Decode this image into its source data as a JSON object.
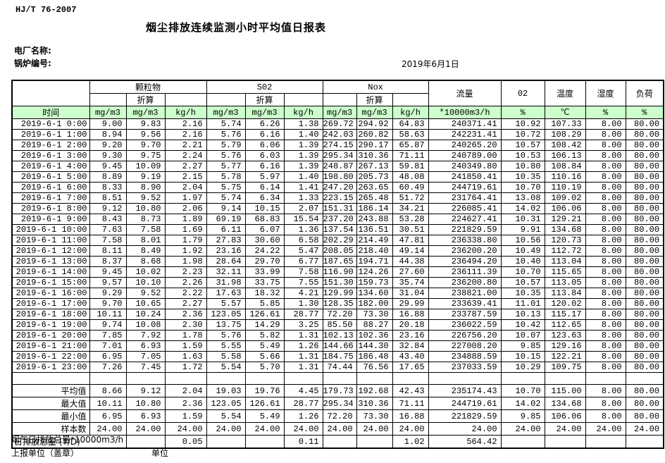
{
  "page": {
    "doc_number": "HJ/T  76-2007",
    "title": "烟尘排放连续监测小时平均值日报表",
    "plant_label": "电厂名称:",
    "boiler_label": "锅炉编号:",
    "date": "2019年6月1日"
  },
  "table": {
    "time_header": "时间",
    "groups": [
      {
        "label": "颗粒物",
        "sub": "折算",
        "units": [
          "mg/m3",
          "mg/m3",
          "kg/h"
        ]
      },
      {
        "label": "S02",
        "sub": "折算",
        "units": [
          "mg/m3",
          "mg/m3",
          "kg/h"
        ]
      },
      {
        "label": "Nox",
        "sub": "折算",
        "units": [
          "mg/m3",
          "mg/m3",
          "kg/h"
        ]
      }
    ],
    "singles": [
      {
        "label": "流量",
        "unit": "*10000m3/h"
      },
      {
        "label": "02",
        "unit": "%"
      },
      {
        "label": "温度",
        "unit": "℃"
      },
      {
        "label": "湿度",
        "unit": "%"
      },
      {
        "label": "负荷",
        "unit": "%"
      }
    ],
    "rows": [
      [
        "2019-6-1 0:00",
        "9.00",
        "9.83",
        "2.16",
        "5.74",
        "6.26",
        "1.38",
        "269.72",
        "294.92",
        "64.83",
        "240371.41",
        "10.92",
        "107.33",
        "8.00",
        "80.00"
      ],
      [
        "2019-6-1 1:00",
        "8.94",
        "9.56",
        "2.16",
        "5.76",
        "6.16",
        "1.40",
        "242.03",
        "260.82",
        "58.63",
        "242231.41",
        "10.72",
        "108.29",
        "8.00",
        "80.00"
      ],
      [
        "2019-6-1 2:00",
        "9.20",
        "9.70",
        "2.21",
        "5.79",
        "6.06",
        "1.39",
        "274.15",
        "290.17",
        "65.87",
        "240265.20",
        "10.57",
        "108.42",
        "8.00",
        "80.00"
      ],
      [
        "2019-6-1 3:00",
        "9.30",
        "9.75",
        "2.24",
        "5.76",
        "6.03",
        "1.39",
        "295.34",
        "310.36",
        "71.11",
        "240789.00",
        "10.53",
        "106.13",
        "8.00",
        "80.00"
      ],
      [
        "2019-6-1 4:00",
        "9.45",
        "10.09",
        "2.27",
        "5.77",
        "6.16",
        "1.39",
        "248.87",
        "267.13",
        "59.81",
        "240349.80",
        "10.80",
        "108.84",
        "8.00",
        "80.00"
      ],
      [
        "2019-6-1 5:00",
        "8.89",
        "9.19",
        "2.15",
        "5.78",
        "5.97",
        "1.40",
        "198.80",
        "205.73",
        "48.08",
        "241850.41",
        "10.35",
        "110.16",
        "8.00",
        "80.00"
      ],
      [
        "2019-6-1 6:00",
        "8.33",
        "8.90",
        "2.04",
        "5.75",
        "6.14",
        "1.41",
        "247.20",
        "263.65",
        "60.49",
        "244719.61",
        "10.70",
        "110.19",
        "8.00",
        "80.00"
      ],
      [
        "2019-6-1 7:00",
        "8.51",
        "9.52",
        "1.97",
        "5.74",
        "6.34",
        "1.33",
        "223.15",
        "265.48",
        "51.72",
        "231764.41",
        "13.08",
        "109.02",
        "8.00",
        "80.00"
      ],
      [
        "2019-6-1 8:00",
        "9.12",
        "10.80",
        "2.06",
        "9.14",
        "10.15",
        "2.07",
        "151.31",
        "186.14",
        "34.21",
        "226085.41",
        "14.02",
        "106.06",
        "8.00",
        "80.00"
      ],
      [
        "2019-6-1 9:00",
        "8.43",
        "8.73",
        "1.89",
        "69.19",
        "68.83",
        "15.54",
        "237.20",
        "243.88",
        "53.28",
        "224627.41",
        "10.31",
        "129.21",
        "8.00",
        "80.00"
      ],
      [
        "2019-6-1 10:00",
        "7.63",
        "7.58",
        "1.69",
        "6.11",
        "6.07",
        "1.36",
        "137.54",
        "136.51",
        "30.51",
        "221829.59",
        "9.91",
        "134.68",
        "8.00",
        "80.00"
      ],
      [
        "2019-6-1 11:00",
        "7.58",
        "8.01",
        "1.79",
        "27.83",
        "30.60",
        "6.58",
        "202.29",
        "214.49",
        "47.81",
        "236338.80",
        "10.56",
        "120.73",
        "8.00",
        "80.00"
      ],
      [
        "2019-6-1 12:00",
        "8.11",
        "8.49",
        "1.92",
        "23.16",
        "24.22",
        "5.47",
        "208.05",
        "218.40",
        "49.14",
        "236200.20",
        "10.49",
        "112.72",
        "8.00",
        "80.00"
      ],
      [
        "2019-6-1 13:00",
        "8.37",
        "8.68",
        "1.98",
        "28.64",
        "29.70",
        "6.77",
        "187.65",
        "194.71",
        "44.38",
        "236494.20",
        "10.40",
        "113.04",
        "8.00",
        "80.00"
      ],
      [
        "2019-6-1 14:00",
        "9.45",
        "10.02",
        "2.23",
        "32.11",
        "33.99",
        "7.58",
        "116.90",
        "124.26",
        "27.60",
        "236111.39",
        "10.70",
        "115.65",
        "8.00",
        "80.00"
      ],
      [
        "2019-6-1 15:00",
        "9.57",
        "10.10",
        "2.26",
        "31.98",
        "33.75",
        "7.55",
        "151.30",
        "159.73",
        "35.74",
        "236200.80",
        "10.57",
        "113.05",
        "8.00",
        "80.00"
      ],
      [
        "2019-6-1 16:00",
        "9.29",
        "9.52",
        "2.22",
        "17.63",
        "18.32",
        "4.21",
        "129.99",
        "134.60",
        "31.04",
        "238821.00",
        "10.35",
        "113.84",
        "8.00",
        "80.00"
      ],
      [
        "2019-6-1 17:00",
        "9.70",
        "10.65",
        "2.27",
        "5.57",
        "5.85",
        "1.30",
        "128.35",
        "182.00",
        "29.99",
        "233639.41",
        "11.01",
        "120.02",
        "8.00",
        "80.00"
      ],
      [
        "2019-6-1 18:00",
        "10.11",
        "10.24",
        "2.36",
        "123.05",
        "126.61",
        "28.77",
        "72.20",
        "73.30",
        "16.88",
        "233787.59",
        "10.13",
        "115.17",
        "8.00",
        "80.00"
      ],
      [
        "2019-6-1 19:00",
        "9.74",
        "10.08",
        "2.30",
        "13.75",
        "14.29",
        "3.25",
        "85.50",
        "88.27",
        "20.18",
        "236022.59",
        "10.42",
        "112.65",
        "8.00",
        "80.00"
      ],
      [
        "2019-6-1 20:00",
        "7.85",
        "7.92",
        "1.78",
        "5.76",
        "5.82",
        "1.31",
        "102.13",
        "102.36",
        "23.16",
        "226756.20",
        "10.07",
        "123.63",
        "8.00",
        "80.00"
      ],
      [
        "2019-6-1 21:00",
        "7.01",
        "6.93",
        "1.59",
        "5.55",
        "5.49",
        "1.26",
        "144.66",
        "144.30",
        "32.84",
        "227008.20",
        "9.85",
        "129.16",
        "8.00",
        "80.00"
      ],
      [
        "2019-6-1 22:00",
        "6.95",
        "7.05",
        "1.63",
        "5.58",
        "5.66",
        "1.31",
        "184.75",
        "186.48",
        "43.40",
        "234888.59",
        "10.15",
        "122.21",
        "8.00",
        "80.00"
      ],
      [
        "2019-6-1 23:00",
        "7.26",
        "7.45",
        "1.72",
        "5.54",
        "5.70",
        "1.31",
        "74.44",
        "76.56",
        "17.65",
        "237033.59",
        "10.29",
        "109.75",
        "8.00",
        "80.00"
      ]
    ],
    "summary_rows": [
      [
        "平均值",
        "8.66",
        "9.12",
        "2.04",
        "19.03",
        "19.76",
        "4.45",
        "179.73",
        "192.68",
        "42.43",
        "235174.43",
        "10.70",
        "115.00",
        "8.00",
        "80.00"
      ],
      [
        "最大值",
        "10.11",
        "10.80",
        "2.36",
        "123.05",
        "126.61",
        "28.77",
        "295.34",
        "310.36",
        "71.11",
        "244719.61",
        "14.02",
        "134.68",
        "8.00",
        "80.00"
      ],
      [
        "最小值",
        "6.95",
        "6.93",
        "1.59",
        "5.54",
        "5.49",
        "1.26",
        "72.20",
        "73.30",
        "16.88",
        "221829.59",
        "9.85",
        "106.06",
        "8.00",
        "80.00"
      ],
      [
        "样本数",
        "24.00",
        "24.00",
        "24.00",
        "24.00",
        "24.00",
        "24.00",
        "24.00",
        "24.00",
        "24.00",
        "24.00",
        "24.00",
        "24.00",
        "24.00",
        "24.00"
      ]
    ],
    "total_row": {
      "label": "日排放总量 (T/D)",
      "values": [
        "",
        "0.05",
        "",
        "",
        "0.11",
        "",
        "",
        "1.02",
        "564.42",
        "",
        "",
        "",
        ""
      ]
    }
  },
  "footer": {
    "flue_total": "烟气日排放总量*10000m3/h",
    "report_unit_label": "上报单位（盖章）",
    "unit_label": "单位"
  },
  "colors": {
    "header_green": "#ccffcc",
    "border": "#000000"
  }
}
